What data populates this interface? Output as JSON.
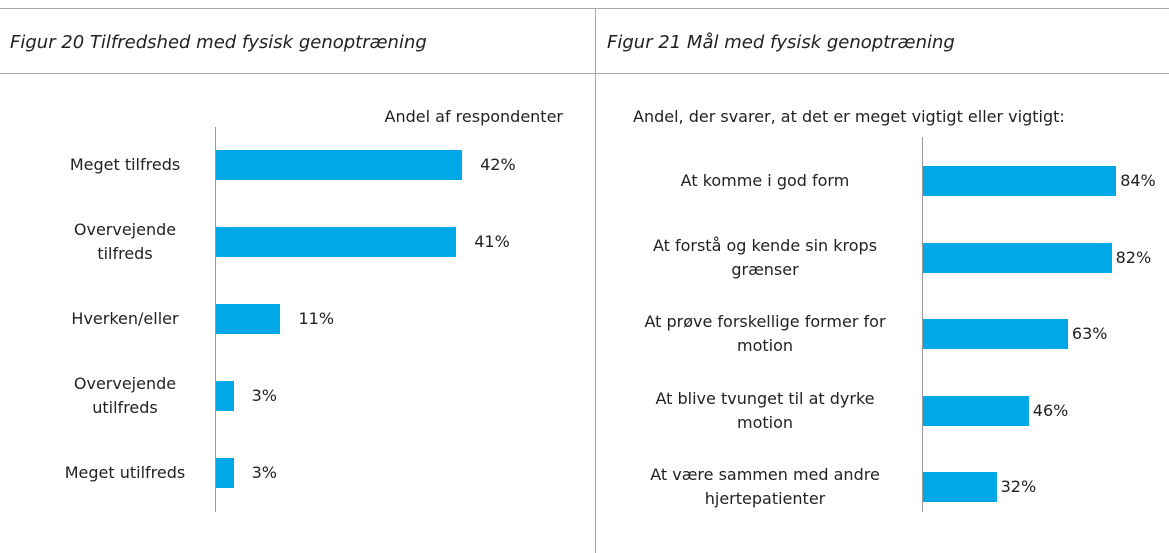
{
  "chart_data": [
    {
      "type": "bar",
      "orientation": "horizontal",
      "title": "Figur 20 Tilfredshed med fysisk genoptræning",
      "subtitle": "Andel af respondenter",
      "categories": [
        "Meget tilfreds",
        "Overvejende tilfreds",
        "Hverken/eller",
        "Overvejende utilfreds",
        "Meget utilfreds"
      ],
      "values": [
        42,
        41,
        11,
        3,
        3
      ],
      "value_labels": [
        "42%",
        "41%",
        "11%",
        "3%",
        "3%"
      ],
      "color": "#00a8e8"
    },
    {
      "type": "bar",
      "orientation": "horizontal",
      "title": "Figur 21 Mål med fysisk genoptræning",
      "subtitle": "Andel, der svarer, at det er meget vigtigt eller vigtigt:",
      "categories": [
        "At komme i god form",
        "At forstå og kende sin krops grænser",
        "At prøve forskellige former for motion",
        "At blive tvunget til at dyrke motion",
        "At være sammen med andre hjertepatienter"
      ],
      "values": [
        84,
        82,
        63,
        46,
        32
      ],
      "value_labels": [
        "84%",
        "82%",
        "63%",
        "46%",
        "32%"
      ],
      "color": "#00a8e8"
    }
  ]
}
